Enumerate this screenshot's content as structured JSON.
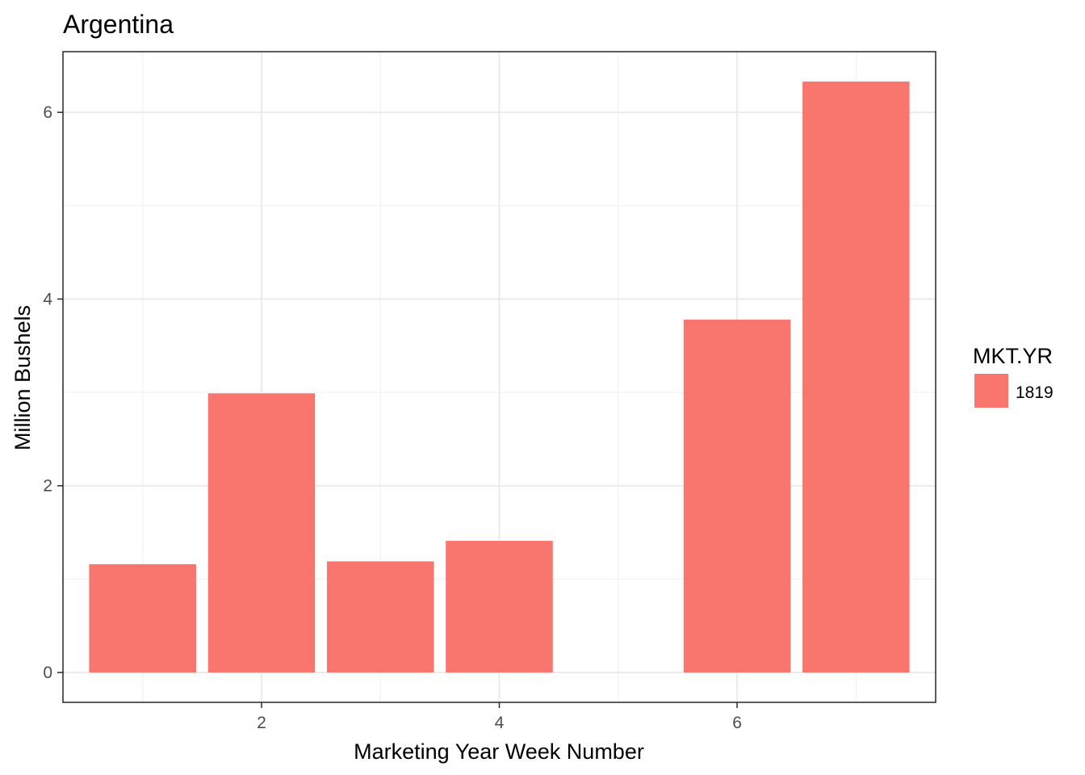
{
  "chart_data": {
    "type": "bar",
    "title": "Argentina",
    "xlabel": "Marketing Year Week Number",
    "ylabel": "Million Bushels",
    "x": [
      1,
      2,
      3,
      4,
      6,
      7
    ],
    "series": [
      {
        "name": "1819",
        "values": [
          1.16,
          2.99,
          1.19,
          1.41,
          3.78,
          6.33
        ],
        "color": "#F8766D"
      }
    ],
    "xlim": [
      0.33,
      7.67
    ],
    "ylim": [
      -0.32,
      6.65
    ],
    "x_ticks": [
      2,
      4,
      6
    ],
    "y_ticks": [
      0,
      2,
      4,
      6
    ],
    "x_tick_labels": [
      "2",
      "4",
      "6"
    ],
    "y_tick_labels": [
      "0",
      "2",
      "4",
      "6"
    ],
    "grid": true,
    "legend": {
      "title": "MKT.YR",
      "placement": "right"
    }
  }
}
